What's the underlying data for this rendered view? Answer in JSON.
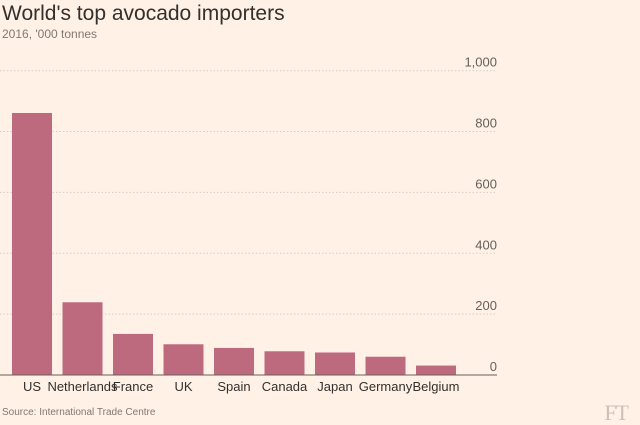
{
  "chart_data": {
    "type": "bar",
    "title": "World's top avocado importers",
    "subtitle": "2016, '000 tonnes",
    "categories": [
      "US",
      "Netherlands",
      "France",
      "UK",
      "Spain",
      "Canada",
      "Japan",
      "Germany",
      "Belgium"
    ],
    "values": [
      861,
      239,
      135,
      101,
      89,
      78,
      74,
      60,
      31
    ],
    "ylim": [
      0,
      1000
    ],
    "yticks": [
      0,
      200,
      400,
      600,
      800,
      1000
    ],
    "ytick_labels": [
      "0",
      "200",
      "400",
      "600",
      "800",
      "1,000"
    ],
    "xlabel": "",
    "ylabel": "",
    "grid": true,
    "bar_color": "#bd6a7f",
    "source": "Source: International Trade Centre",
    "logo": "FT"
  }
}
